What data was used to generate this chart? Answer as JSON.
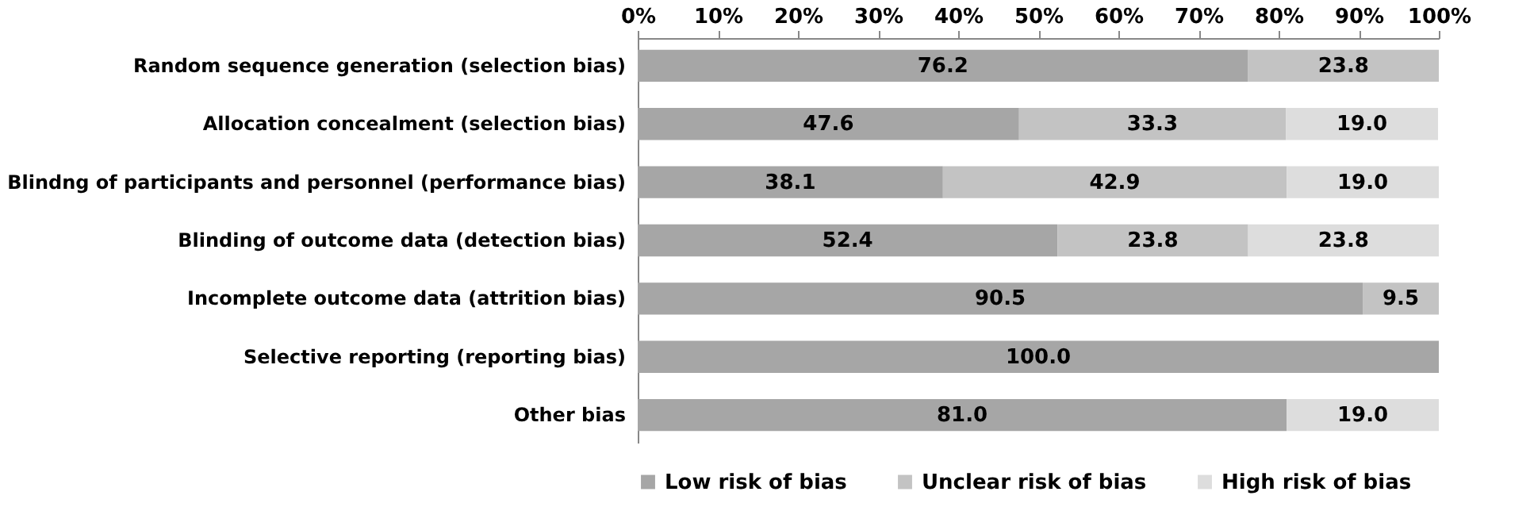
{
  "chart_data": {
    "type": "bar",
    "orientation": "horizontal",
    "stacked": true,
    "categories": [
      "Random sequence generation (selection bias)",
      "Allocation concealment (selection bias)",
      "Blindng of participants and personnel (performance bias)",
      "Blinding of outcome data (detection bias)",
      "Incomplete outcome data (attrition bias)",
      "Selective reporting (reporting bias)",
      "Other bias"
    ],
    "series": [
      {
        "name": "Low risk of bias",
        "color": "#a6a6a6",
        "values": [
          76.2,
          47.6,
          38.1,
          52.4,
          90.5,
          100,
          81
        ],
        "value_labels": [
          "76.2",
          "47.6",
          "38.1",
          "52.4",
          "90.5",
          "100.0",
          "81.0"
        ]
      },
      {
        "name": "Unclear risk of bias",
        "color": "#c3c3c3",
        "values": [
          23.8,
          33.3,
          42.9,
          23.8,
          9.5,
          0,
          0
        ],
        "value_labels": [
          "23.8",
          "33.3",
          "42.9",
          "23.8",
          "9.5",
          null,
          null
        ]
      },
      {
        "name": "High risk of bias",
        "color": "#dddddd",
        "values": [
          0,
          19,
          19,
          23.8,
          0,
          0,
          19
        ],
        "value_labels": [
          null,
          "19.0",
          "19.0",
          "23.8",
          null,
          null,
          "19.0"
        ]
      }
    ],
    "xlim": [
      0,
      100
    ],
    "xticks": [
      {
        "value": 0,
        "label": "0%"
      },
      {
        "value": 10,
        "label": "10%"
      },
      {
        "value": 20,
        "label": "20%"
      },
      {
        "value": 30,
        "label": "30%"
      },
      {
        "value": 40,
        "label": "40%"
      },
      {
        "value": 50,
        "label": "50%"
      },
      {
        "value": 60,
        "label": "60%"
      },
      {
        "value": 70,
        "label": "70%"
      },
      {
        "value": 80,
        "label": "80%"
      },
      {
        "value": 90,
        "label": "90%"
      },
      {
        "value": 100,
        "label": "100%"
      }
    ],
    "grid": false,
    "legend": "bottom"
  }
}
